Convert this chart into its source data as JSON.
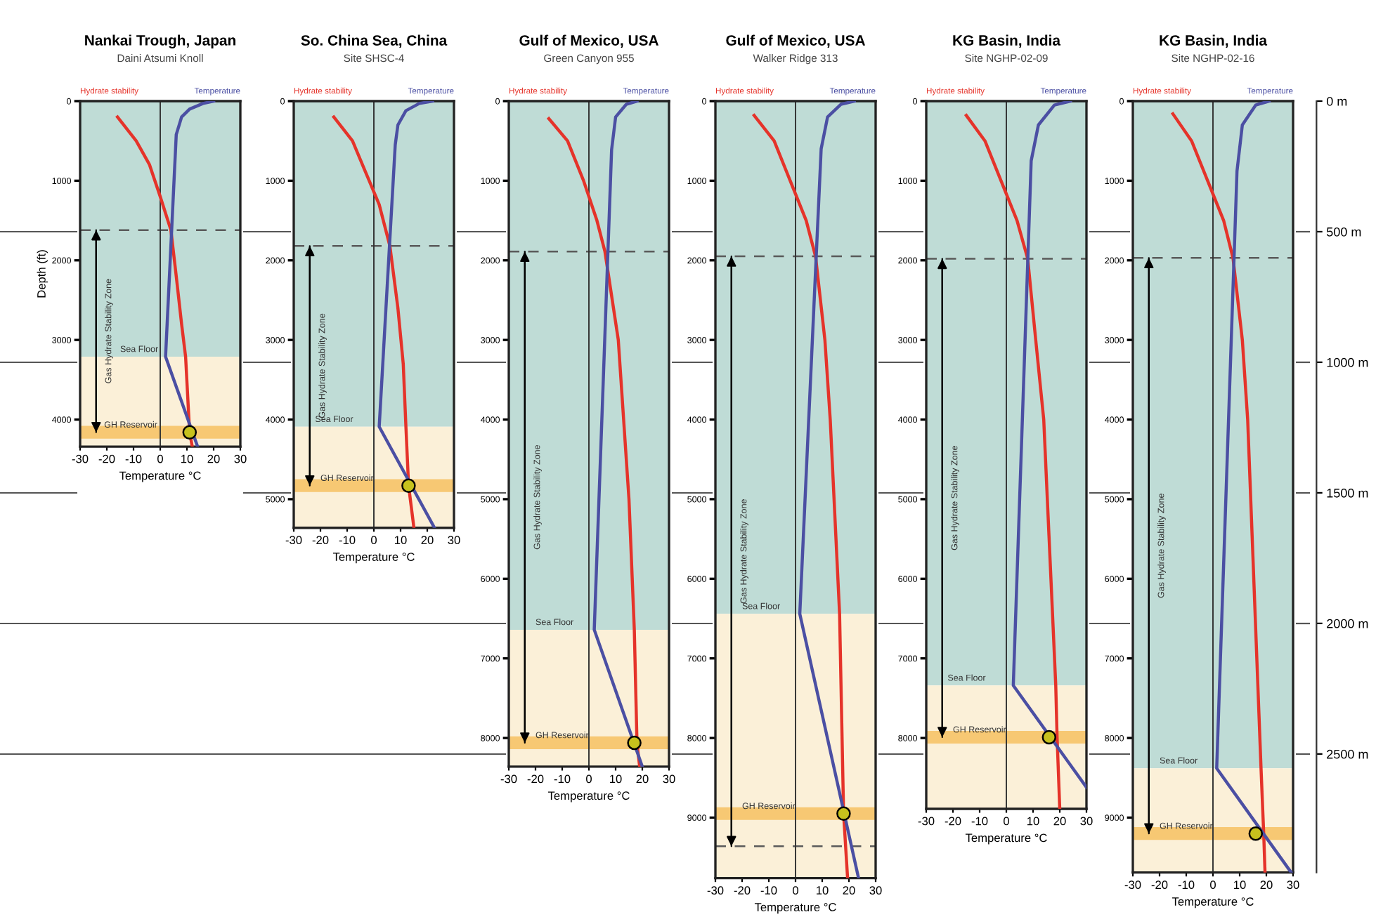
{
  "chart_data": [
    {
      "type": "line",
      "title": "Nankai Trough, Japan",
      "subtitle": "Daini Atsumi Knoll",
      "xlabel": "Temperature °C",
      "ylabel": "Depth (ft)",
      "xlim": [
        -30,
        30
      ],
      "xticks": [
        -30,
        -20,
        -10,
        0,
        10,
        20,
        30
      ],
      "ylim": [
        4340,
        0
      ],
      "yticks": [
        0,
        1000,
        2000,
        3000,
        4000
      ],
      "grid": false,
      "legend": false,
      "series": [
        {
          "name": "Hydrate stability",
          "color": "#e5332a",
          "x": [
            -16,
            -9,
            -4,
            0,
            4,
            6,
            8,
            9.5,
            11,
            12
          ],
          "values": [
            200,
            500,
            800,
            1200,
            1620,
            2200,
            2800,
            3210,
            4160,
            4340
          ]
        },
        {
          "name": "Temperature",
          "color": "#4b4fa3",
          "x": [
            20,
            16,
            11,
            8,
            6,
            2,
            14
          ],
          "values": [
            0,
            30,
            100,
            200,
            420,
            3210,
            4340
          ]
        },
        {
          "type": "scatter",
          "marker": "circle",
          "color": "#c6c11d",
          "x": [
            11
          ],
          "values": [
            4160
          ]
        }
      ],
      "bands": [
        {
          "axis": "y",
          "from": 0,
          "to": 3210,
          "color": "#bfdcd6"
        },
        {
          "axis": "y",
          "from": 3210,
          "to": 4340,
          "color": "#fbf0d8"
        },
        {
          "axis": "y",
          "from": 4080,
          "to": 4240,
          "color": "#f7c873"
        }
      ],
      "ref_lines": [
        {
          "axis": "y",
          "value": 1620,
          "line_style": "dashed",
          "color": "#5a5a5a"
        },
        {
          "axis": "x",
          "value": 0,
          "line_style": "solid",
          "color": "#333333"
        }
      ],
      "annotations": [
        {
          "text": "Sea Floor",
          "x": -15,
          "y": 3210
        },
        {
          "text": "GH Reservoir",
          "x": -21,
          "y": 4160
        },
        "Gas Hydrate Stability Zone"
      ]
    },
    {
      "type": "line",
      "title": "So. China Sea, China",
      "subtitle": "Site SHSC-4",
      "xlabel": "Temperature °C",
      "xlim": [
        -30,
        30
      ],
      "xticks": [
        -30,
        -20,
        -10,
        0,
        10,
        20,
        30
      ],
      "ylim": [
        5360,
        0
      ],
      "yticks": [
        0,
        1000,
        2000,
        3000,
        4000,
        5000
      ],
      "grid": false,
      "legend": false,
      "series": [
        {
          "name": "Hydrate stability",
          "color": "#e5332a",
          "x": [
            -15,
            -8,
            -3,
            2,
            6,
            9,
            11,
            12,
            13,
            15
          ],
          "values": [
            200,
            500,
            900,
            1300,
            1820,
            2600,
            3300,
            4090,
            4830,
            5360
          ]
        },
        {
          "name": "Temperature",
          "color": "#4b4fa3",
          "x": [
            22,
            17,
            12,
            9,
            8,
            2,
            22.7
          ],
          "values": [
            0,
            30,
            120,
            300,
            550,
            4090,
            5360
          ]
        },
        {
          "type": "scatter",
          "marker": "circle",
          "color": "#c6c11d",
          "x": [
            13
          ],
          "values": [
            4830
          ]
        }
      ],
      "bands": [
        {
          "axis": "y",
          "from": 0,
          "to": 4090,
          "color": "#bfdcd6"
        },
        {
          "axis": "y",
          "from": 4090,
          "to": 5360,
          "color": "#fbf0d8"
        },
        {
          "axis": "y",
          "from": 4750,
          "to": 4910,
          "color": "#f7c873"
        }
      ],
      "ref_lines": [
        {
          "axis": "y",
          "value": 1820,
          "line_style": "dashed",
          "color": "#5a5a5a"
        },
        {
          "axis": "x",
          "value": 0,
          "line_style": "solid",
          "color": "#333333"
        }
      ],
      "annotations": [
        {
          "text": "Sea Floor",
          "x": -22,
          "y": 4090
        },
        {
          "text": "GH Reservoir",
          "x": -20,
          "y": 4830
        },
        "Gas Hydrate Stability Zone"
      ]
    },
    {
      "type": "line",
      "title": "Gulf of Mexico, USA",
      "subtitle": "Green Canyon 955",
      "xlabel": "Temperature °C",
      "xlim": [
        -30,
        30
      ],
      "xticks": [
        -30,
        -20,
        -10,
        0,
        10,
        20,
        30
      ],
      "ylim": [
        8360,
        0
      ],
      "yticks": [
        0,
        1000,
        2000,
        3000,
        4000,
        5000,
        6000,
        7000,
        8000
      ],
      "grid": false,
      "legend": false,
      "series": [
        {
          "name": "Hydrate stability",
          "color": "#e5332a",
          "x": [
            -15,
            -8,
            -2,
            3,
            6,
            11,
            15,
            17,
            18,
            19
          ],
          "values": [
            220,
            500,
            1000,
            1500,
            1890,
            3000,
            5000,
            6640,
            8060,
            8360
          ]
        },
        {
          "name": "Temperature",
          "color": "#4b4fa3",
          "x": [
            18,
            14,
            10,
            8.5,
            2,
            20
          ],
          "values": [
            0,
            40,
            200,
            610,
            6640,
            8360
          ]
        },
        {
          "type": "scatter",
          "marker": "circle",
          "color": "#c6c11d",
          "x": [
            17
          ],
          "values": [
            8060
          ]
        }
      ],
      "bands": [
        {
          "axis": "y",
          "from": 0,
          "to": 6640,
          "color": "#bfdcd6"
        },
        {
          "axis": "y",
          "from": 6640,
          "to": 8360,
          "color": "#fbf0d8"
        },
        {
          "axis": "y",
          "from": 7980,
          "to": 8140,
          "color": "#f7c873"
        }
      ],
      "ref_lines": [
        {
          "axis": "y",
          "value": 1890,
          "line_style": "dashed",
          "color": "#5a5a5a"
        },
        {
          "axis": "x",
          "value": 0,
          "line_style": "solid",
          "color": "#333333"
        }
      ],
      "annotations": [
        {
          "text": "Sea Floor",
          "x": -20,
          "y": 6640
        },
        {
          "text": "GH Reservoir",
          "x": -20,
          "y": 8060
        },
        "Gas Hydrate Stability Zone"
      ]
    },
    {
      "type": "line",
      "title": "Gulf of Mexico, USA",
      "subtitle": "Walker Ridge 313",
      "xlabel": "Temperature °C",
      "xlim": [
        -30,
        30
      ],
      "xticks": [
        -30,
        -20,
        -10,
        0,
        10,
        20,
        30
      ],
      "ylim": [
        9760,
        0
      ],
      "yticks": [
        0,
        1000,
        2000,
        3000,
        4000,
        5000,
        6000,
        7000,
        8000,
        9000
      ],
      "grid": false,
      "legend": false,
      "series": [
        {
          "name": "Hydrate stability",
          "color": "#e5332a",
          "x": [
            -15.5,
            -8,
            -2,
            4,
            7.5,
            11,
            13,
            16.5,
            18,
            19.5
          ],
          "values": [
            180,
            500,
            1000,
            1500,
            1950,
            3000,
            4000,
            6440,
            8950,
            9760
          ]
        },
        {
          "name": "Temperature",
          "color": "#4b4fa3",
          "x": [
            22,
            17,
            12,
            9.6,
            1.6,
            23.6
          ],
          "values": [
            0,
            40,
            200,
            600,
            6440,
            9760
          ]
        },
        {
          "type": "scatter",
          "marker": "circle",
          "color": "#c6c11d",
          "x": [
            18
          ],
          "values": [
            8950
          ]
        }
      ],
      "bands": [
        {
          "axis": "y",
          "from": 0,
          "to": 6440,
          "color": "#bfdcd6"
        },
        {
          "axis": "y",
          "from": 6440,
          "to": 9760,
          "color": "#fbf0d8"
        },
        {
          "axis": "y",
          "from": 8870,
          "to": 9030,
          "color": "#f7c873"
        }
      ],
      "ref_lines": [
        {
          "axis": "y",
          "value": 1950,
          "line_style": "dashed",
          "color": "#5a5a5a"
        },
        {
          "axis": "y",
          "value": 9360,
          "line_style": "dashed",
          "color": "#5a5a5a"
        },
        {
          "axis": "x",
          "value": 0,
          "line_style": "solid",
          "color": "#333333"
        }
      ],
      "annotations": [
        {
          "text": "Sea Floor",
          "x": -20,
          "y": 6440
        },
        {
          "text": "GH Reservoir",
          "x": -20,
          "y": 8950
        },
        "Gas Hydrate Stability Zone"
      ]
    },
    {
      "type": "line",
      "title": "KG Basin, India",
      "subtitle": "Site NGHP-02-09",
      "xlabel": "Temperature °C",
      "xlim": [
        -30,
        30
      ],
      "xticks": [
        -30,
        -20,
        -10,
        0,
        10,
        20,
        30
      ],
      "ylim": [
        8890,
        0
      ],
      "yticks": [
        0,
        1000,
        2000,
        3000,
        4000,
        5000,
        6000,
        7000,
        8000
      ],
      "grid": false,
      "legend": false,
      "series": [
        {
          "name": "Hydrate stability",
          "color": "#e5332a",
          "x": [
            -15,
            -8,
            -2,
            4,
            8,
            11,
            14,
            18.5,
            19,
            20
          ],
          "values": [
            180,
            500,
            1000,
            1500,
            1980,
            3000,
            4000,
            7340,
            7990,
            8890
          ]
        },
        {
          "name": "Temperature",
          "color": "#4b4fa3",
          "x": [
            24,
            18,
            12,
            9.3,
            2.6,
            30
          ],
          "values": [
            0,
            50,
            300,
            750,
            7340,
            8620
          ]
        },
        {
          "type": "scatter",
          "marker": "circle",
          "color": "#c6c11d",
          "x": [
            16
          ],
          "values": [
            7990
          ]
        }
      ],
      "bands": [
        {
          "axis": "y",
          "from": 0,
          "to": 7340,
          "color": "#bfdcd6"
        },
        {
          "axis": "y",
          "from": 7340,
          "to": 8890,
          "color": "#fbf0d8"
        },
        {
          "axis": "y",
          "from": 7910,
          "to": 8070,
          "color": "#f7c873"
        }
      ],
      "ref_lines": [
        {
          "axis": "y",
          "value": 1980,
          "line_style": "dashed",
          "color": "#5a5a5a"
        },
        {
          "axis": "x",
          "value": 0,
          "line_style": "solid",
          "color": "#333333"
        }
      ],
      "annotations": [
        {
          "text": "Sea Floor",
          "x": -22,
          "y": 7340
        },
        {
          "text": "GH Reservoir",
          "x": -20,
          "y": 7990
        },
        "Gas Hydrate Stability Zone"
      ]
    },
    {
      "type": "line",
      "title": "KG Basin, India",
      "subtitle": "Site NGHP-02-16",
      "xlabel": "Temperature °C",
      "xlim": [
        -30,
        30
      ],
      "xticks": [
        -30,
        -20,
        -10,
        0,
        10,
        20,
        30
      ],
      "ylim": [
        9690,
        0
      ],
      "yticks": [
        0,
        1000,
        2000,
        3000,
        4000,
        5000,
        6000,
        7000,
        8000,
        9000
      ],
      "grid": false,
      "legend": false,
      "series": [
        {
          "name": "Hydrate stability",
          "color": "#e5332a",
          "x": [
            -15,
            -8,
            -2,
            4,
            7.5,
            11,
            13,
            18,
            19,
            19.5
          ],
          "values": [
            160,
            500,
            1000,
            1500,
            1970,
            3000,
            4000,
            8380,
            9200,
            9690
          ]
        },
        {
          "name": "Temperature",
          "color": "#4b4fa3",
          "x": [
            21,
            16,
            11,
            9,
            1.4,
            29.3
          ],
          "values": [
            0,
            50,
            300,
            880,
            8380,
            9690
          ]
        },
        {
          "type": "scatter",
          "marker": "circle",
          "color": "#c6c11d",
          "x": [
            16
          ],
          "values": [
            9200
          ]
        }
      ],
      "bands": [
        {
          "axis": "y",
          "from": 0,
          "to": 8380,
          "color": "#bfdcd6"
        },
        {
          "axis": "y",
          "from": 8380,
          "to": 9690,
          "color": "#fbf0d8"
        },
        {
          "axis": "y",
          "from": 9120,
          "to": 9280,
          "color": "#f7c873"
        }
      ],
      "y2lim": [
        2954,
        0
      ],
      "y2ticks": [
        {
          "value": 0,
          "label": "0 m"
        },
        {
          "value": 500,
          "label": "500 m"
        },
        {
          "value": 1000,
          "label": "1000 m"
        },
        {
          "value": 1500,
          "label": "1500 m"
        },
        {
          "value": 2000,
          "label": "2000 m"
        },
        {
          "value": 2500,
          "label": "2500 m"
        }
      ],
      "ref_lines": [
        {
          "axis": "y",
          "value": 1970,
          "line_style": "dashed",
          "color": "#5a5a5a"
        },
        {
          "axis": "x",
          "value": 0,
          "line_style": "solid",
          "color": "#333333"
        }
      ],
      "annotations": [
        {
          "text": "Sea Floor",
          "x": -20,
          "y": 8380
        },
        {
          "text": "GH Reservoir",
          "x": -20,
          "y": 9200
        },
        "Gas Hydrate Stability Zone"
      ]
    }
  ]
}
